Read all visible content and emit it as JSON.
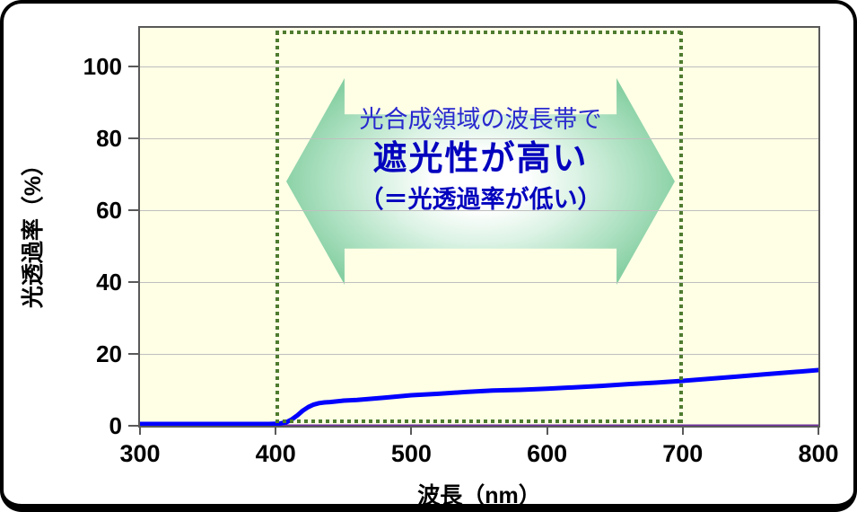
{
  "figure": {
    "frame_color": "#000000",
    "background": "#ffffff"
  },
  "chart_data": {
    "type": "line",
    "title": "",
    "xlabel": "波長（nm）",
    "ylabel": "光透過率（%）",
    "xlim": [
      300,
      800
    ],
    "ylim": [
      0,
      110.75
    ],
    "x_ticks": [
      300,
      400,
      500,
      600,
      700,
      800
    ],
    "y_ticks": [
      0,
      20,
      40,
      60,
      80,
      100
    ],
    "grid": true,
    "legend": "none",
    "plot_bg": "#FFFFE5",
    "grid_color": "#BFBFBF",
    "border_color": "#595959",
    "tick_color": "#595959",
    "series": [
      {
        "color": "#0000FF",
        "stroke_width": 5,
        "x": [
          300,
          350,
          395,
          403,
          408,
          412,
          416,
          420,
          424,
          428,
          432,
          436,
          440,
          450,
          460,
          480,
          500,
          520,
          540,
          560,
          580,
          600,
          620,
          640,
          660,
          680,
          700,
          720,
          740,
          760,
          780,
          800
        ],
        "y": [
          0.5,
          0.5,
          0.5,
          0.6,
          1.0,
          1.8,
          2.9,
          4.2,
          5.2,
          5.9,
          6.3,
          6.5,
          6.6,
          7.0,
          7.2,
          7.8,
          8.5,
          8.9,
          9.4,
          9.8,
          10.0,
          10.3,
          10.7,
          11.1,
          11.6,
          12.0,
          12.5,
          13.1,
          13.7,
          14.3,
          14.9,
          15.5
        ]
      },
      {
        "color": "#7030A0",
        "stroke_width": 3,
        "x": [
          300,
          800
        ],
        "y": [
          0,
          0
        ]
      }
    ],
    "highlight_band": {
      "x_start": 400,
      "x_end": 700,
      "line_style": "square-dotted",
      "color": "#4E7B2F",
      "thickness": 4
    }
  },
  "annotation": {
    "line1": "光合成領域の波長帯で",
    "line2": "遮光性が高い",
    "line3": "（＝光透過率が低い）",
    "line1_color": "#2929CE",
    "bold_color": "#0404BE",
    "arrow_center_color": "#FFFFFF",
    "arrow_edge_color": "#86CFA2"
  }
}
